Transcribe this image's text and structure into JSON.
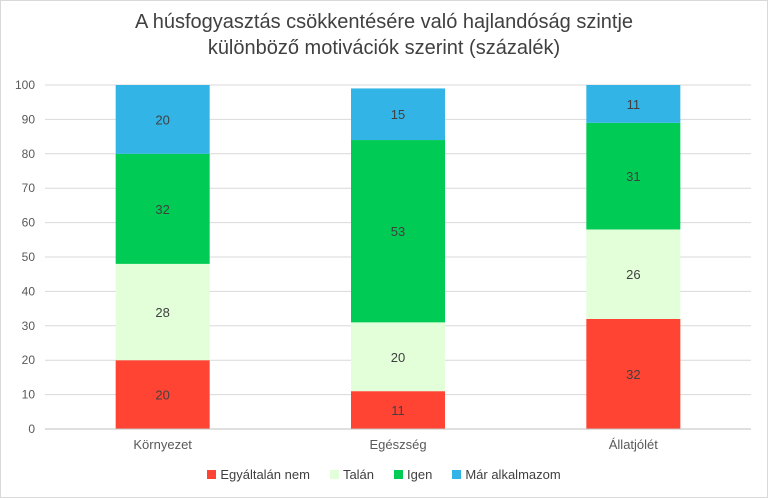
{
  "chart_data": {
    "type": "bar",
    "stacked": true,
    "title_lines": [
      "A húsfogyasztás csökkentésére való hajlandóság szintje",
      "különböző motivációk szerint (százalék)"
    ],
    "categories": [
      "Környezet",
      "Egészség",
      "Állatjólét"
    ],
    "series": [
      {
        "name": "Egyáltalán nem",
        "color": "#FF4433",
        "values": [
          20,
          11,
          32
        ]
      },
      {
        "name": "Talán",
        "color": "#E2FFD9",
        "values": [
          28,
          20,
          26
        ]
      },
      {
        "name": "Igen",
        "color": "#00CC55",
        "values": [
          32,
          53,
          31
        ]
      },
      {
        "name": "Már alkalmazom",
        "color": "#33B4E6",
        "values": [
          20,
          15,
          11
        ]
      }
    ],
    "ylim": [
      0,
      100
    ],
    "yticks": [
      0,
      10,
      20,
      30,
      40,
      50,
      60,
      70,
      80,
      90,
      100
    ],
    "grid": true,
    "legend": "bottom"
  }
}
